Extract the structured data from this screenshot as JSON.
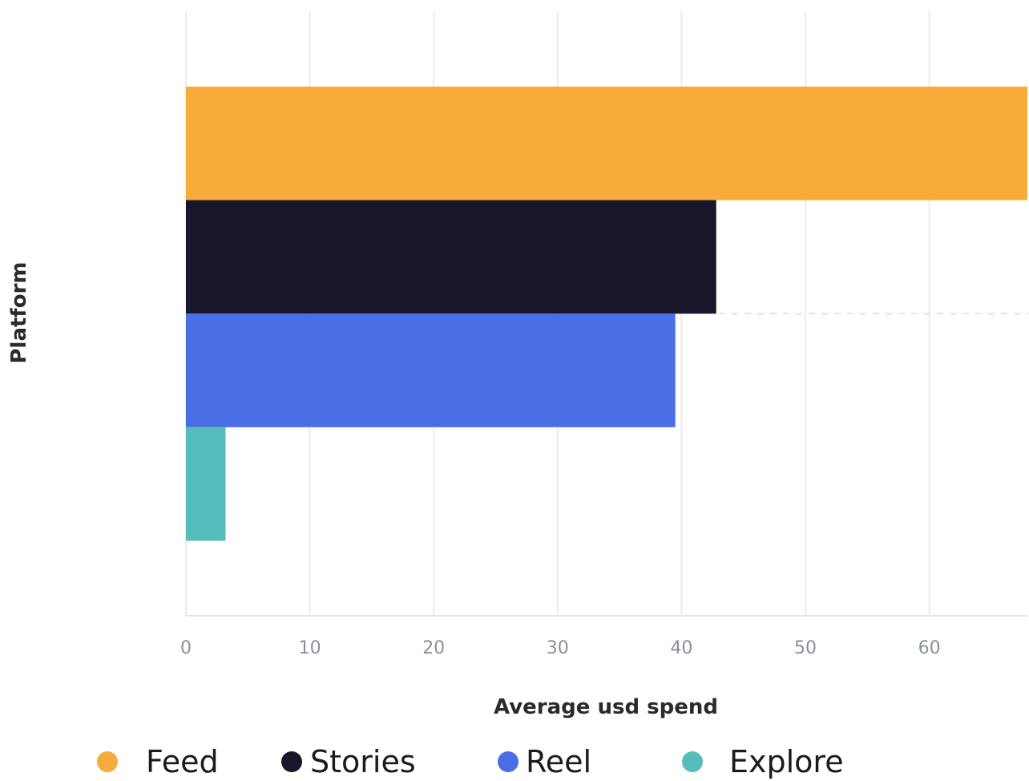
{
  "chart_data": {
    "type": "bar",
    "orientation": "horizontal",
    "categories": [
      "Feed",
      "Stories",
      "Reel",
      "Explore"
    ],
    "values": [
      68,
      42.8,
      39.5,
      3.2
    ],
    "colors": [
      "#f7ab3a",
      "#17162b",
      "#4a6ee6",
      "#55bdbb"
    ],
    "xlabel": "Average usd spend",
    "ylabel": "Platform",
    "xlim": [
      0,
      68
    ],
    "xticks": [
      0,
      10,
      20,
      30,
      40,
      50,
      60
    ],
    "grid": true,
    "legend_position": "bottom",
    "legend": [
      {
        "label": "Feed",
        "color": "#f7ab3a"
      },
      {
        "label": "Stories",
        "color": "#17162b"
      },
      {
        "label": "Reel",
        "color": "#4a6ee6"
      },
      {
        "label": "Explore",
        "color": "#55bdbb"
      }
    ]
  }
}
